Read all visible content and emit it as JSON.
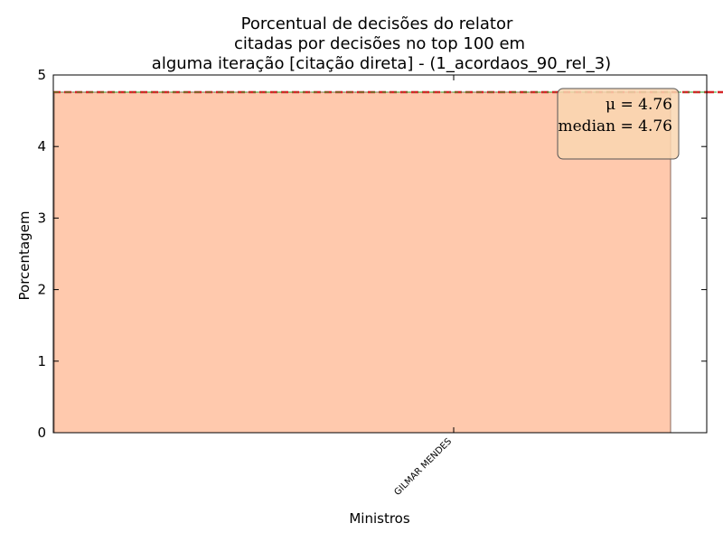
{
  "chart_data": {
    "type": "bar",
    "title_lines": [
      "Porcentual de decisões do relator",
      "citadas por decisões no top 100 em",
      "alguma iteração [citação direta] - (1_acordaos_90_rel_3)"
    ],
    "xlabel": "Ministros",
    "ylabel": "Porcentagem",
    "categories": [
      "GILMAR MENDES"
    ],
    "values": [
      4.76
    ],
    "ylim": [
      0,
      5
    ],
    "yticks": [
      "0",
      "1",
      "2",
      "3",
      "4",
      "5"
    ],
    "mean_line": 4.76,
    "median_line": 4.76,
    "stats_text": {
      "mean": "μ = 4.76",
      "median": "median = 4.76"
    },
    "legend_placement": "top-right",
    "grid": false,
    "colors": {
      "bar_fill": "#ffc9ad",
      "bar_edge": "#8b6a5e",
      "mean_line": "#d62728",
      "median_line": "#2ca02c",
      "stats_box_fill": "#f9d6b0",
      "stats_box_edge": "#555555"
    }
  }
}
